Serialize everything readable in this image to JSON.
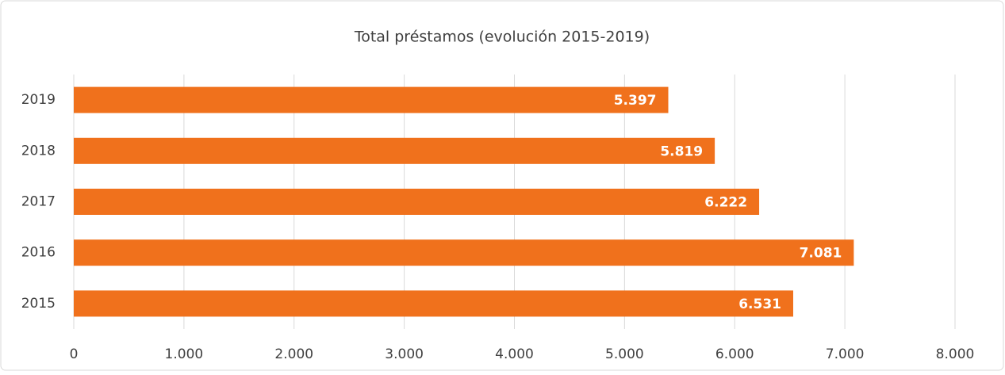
{
  "chart_data": {
    "type": "barh",
    "title": "Total préstamos (evolución 2015-2019)",
    "categories": [
      "2019",
      "2018",
      "2017",
      "2016",
      "2015"
    ],
    "values": [
      5397,
      5819,
      6222,
      7081,
      6531
    ],
    "value_labels": [
      "5.397",
      "5.819",
      "6.222",
      "7.081",
      "6.531"
    ],
    "color": "#f0711c",
    "xlim": [
      0,
      8000
    ],
    "xticks": [
      0,
      {
        "value": 1000,
        "label": "1.000"
      },
      {
        "value": 2000,
        "label": "2.000"
      },
      {
        "value": 3000,
        "label": "3.000"
      },
      {
        "value": 4000,
        "label": "4.000"
      },
      {
        "value": 5000,
        "label": "5.000"
      },
      {
        "value": 6000,
        "label": "6.000"
      },
      {
        "value": 7000,
        "label": "7.000"
      },
      {
        "value": 8000,
        "label": "8.000"
      }
    ],
    "grid": true
  }
}
